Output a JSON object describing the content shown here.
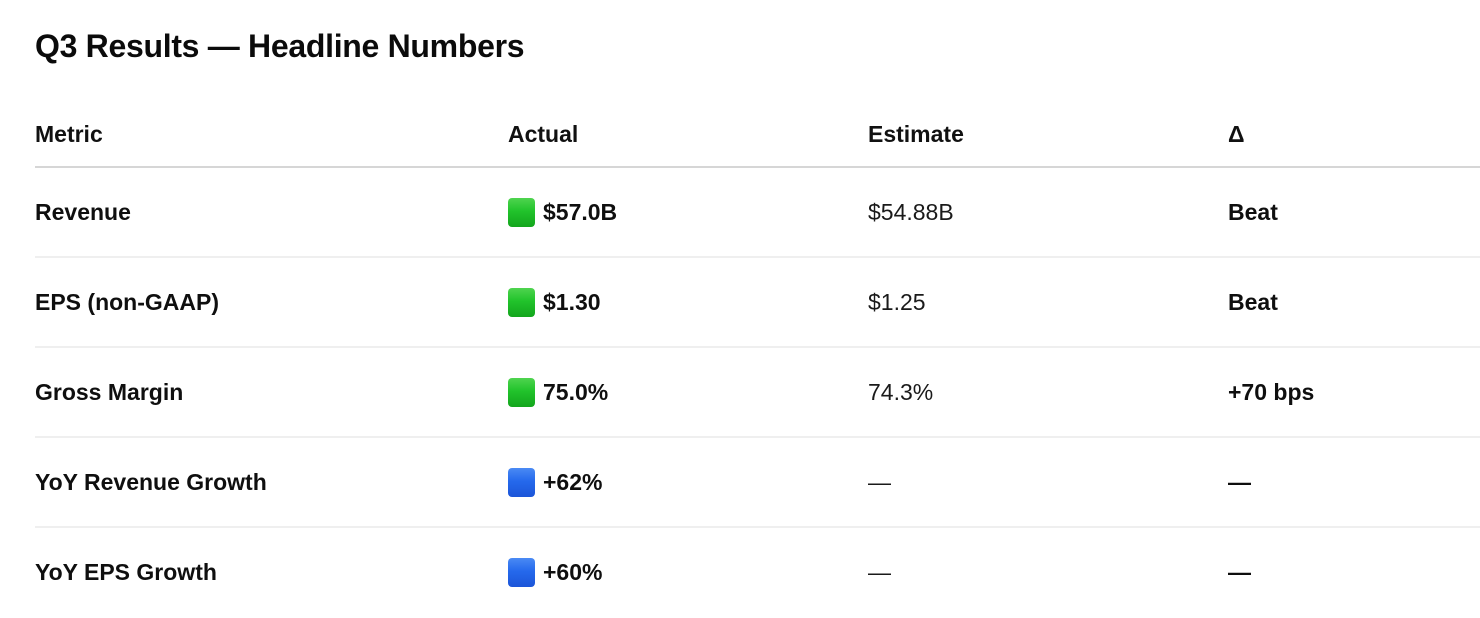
{
  "page": {
    "title": "Q3 Results — Headline Numbers"
  },
  "table": {
    "columns": [
      {
        "label": "Metric"
      },
      {
        "label": "Actual"
      },
      {
        "label": "Estimate"
      },
      {
        "label": "Δ"
      }
    ],
    "rows": [
      {
        "metric": "Revenue",
        "actual": "$57.0B",
        "actual_marker": "green",
        "estimate": "$54.88B",
        "delta": "Beat"
      },
      {
        "metric": "EPS (non-GAAP)",
        "actual": "$1.30",
        "actual_marker": "green",
        "estimate": "$1.25",
        "delta": "Beat"
      },
      {
        "metric": "Gross Margin",
        "actual": "75.0%",
        "actual_marker": "green",
        "estimate": "74.3%",
        "delta": "+70 bps"
      },
      {
        "metric": "YoY Revenue Growth",
        "actual": "+62%",
        "actual_marker": "blue",
        "estimate": "—",
        "delta": "—"
      },
      {
        "metric": "YoY EPS Growth",
        "actual": "+60%",
        "actual_marker": "blue",
        "estimate": "—",
        "delta": "—"
      }
    ],
    "marker_colors": {
      "green": "#1fbe2c",
      "blue": "#2569ec"
    }
  }
}
